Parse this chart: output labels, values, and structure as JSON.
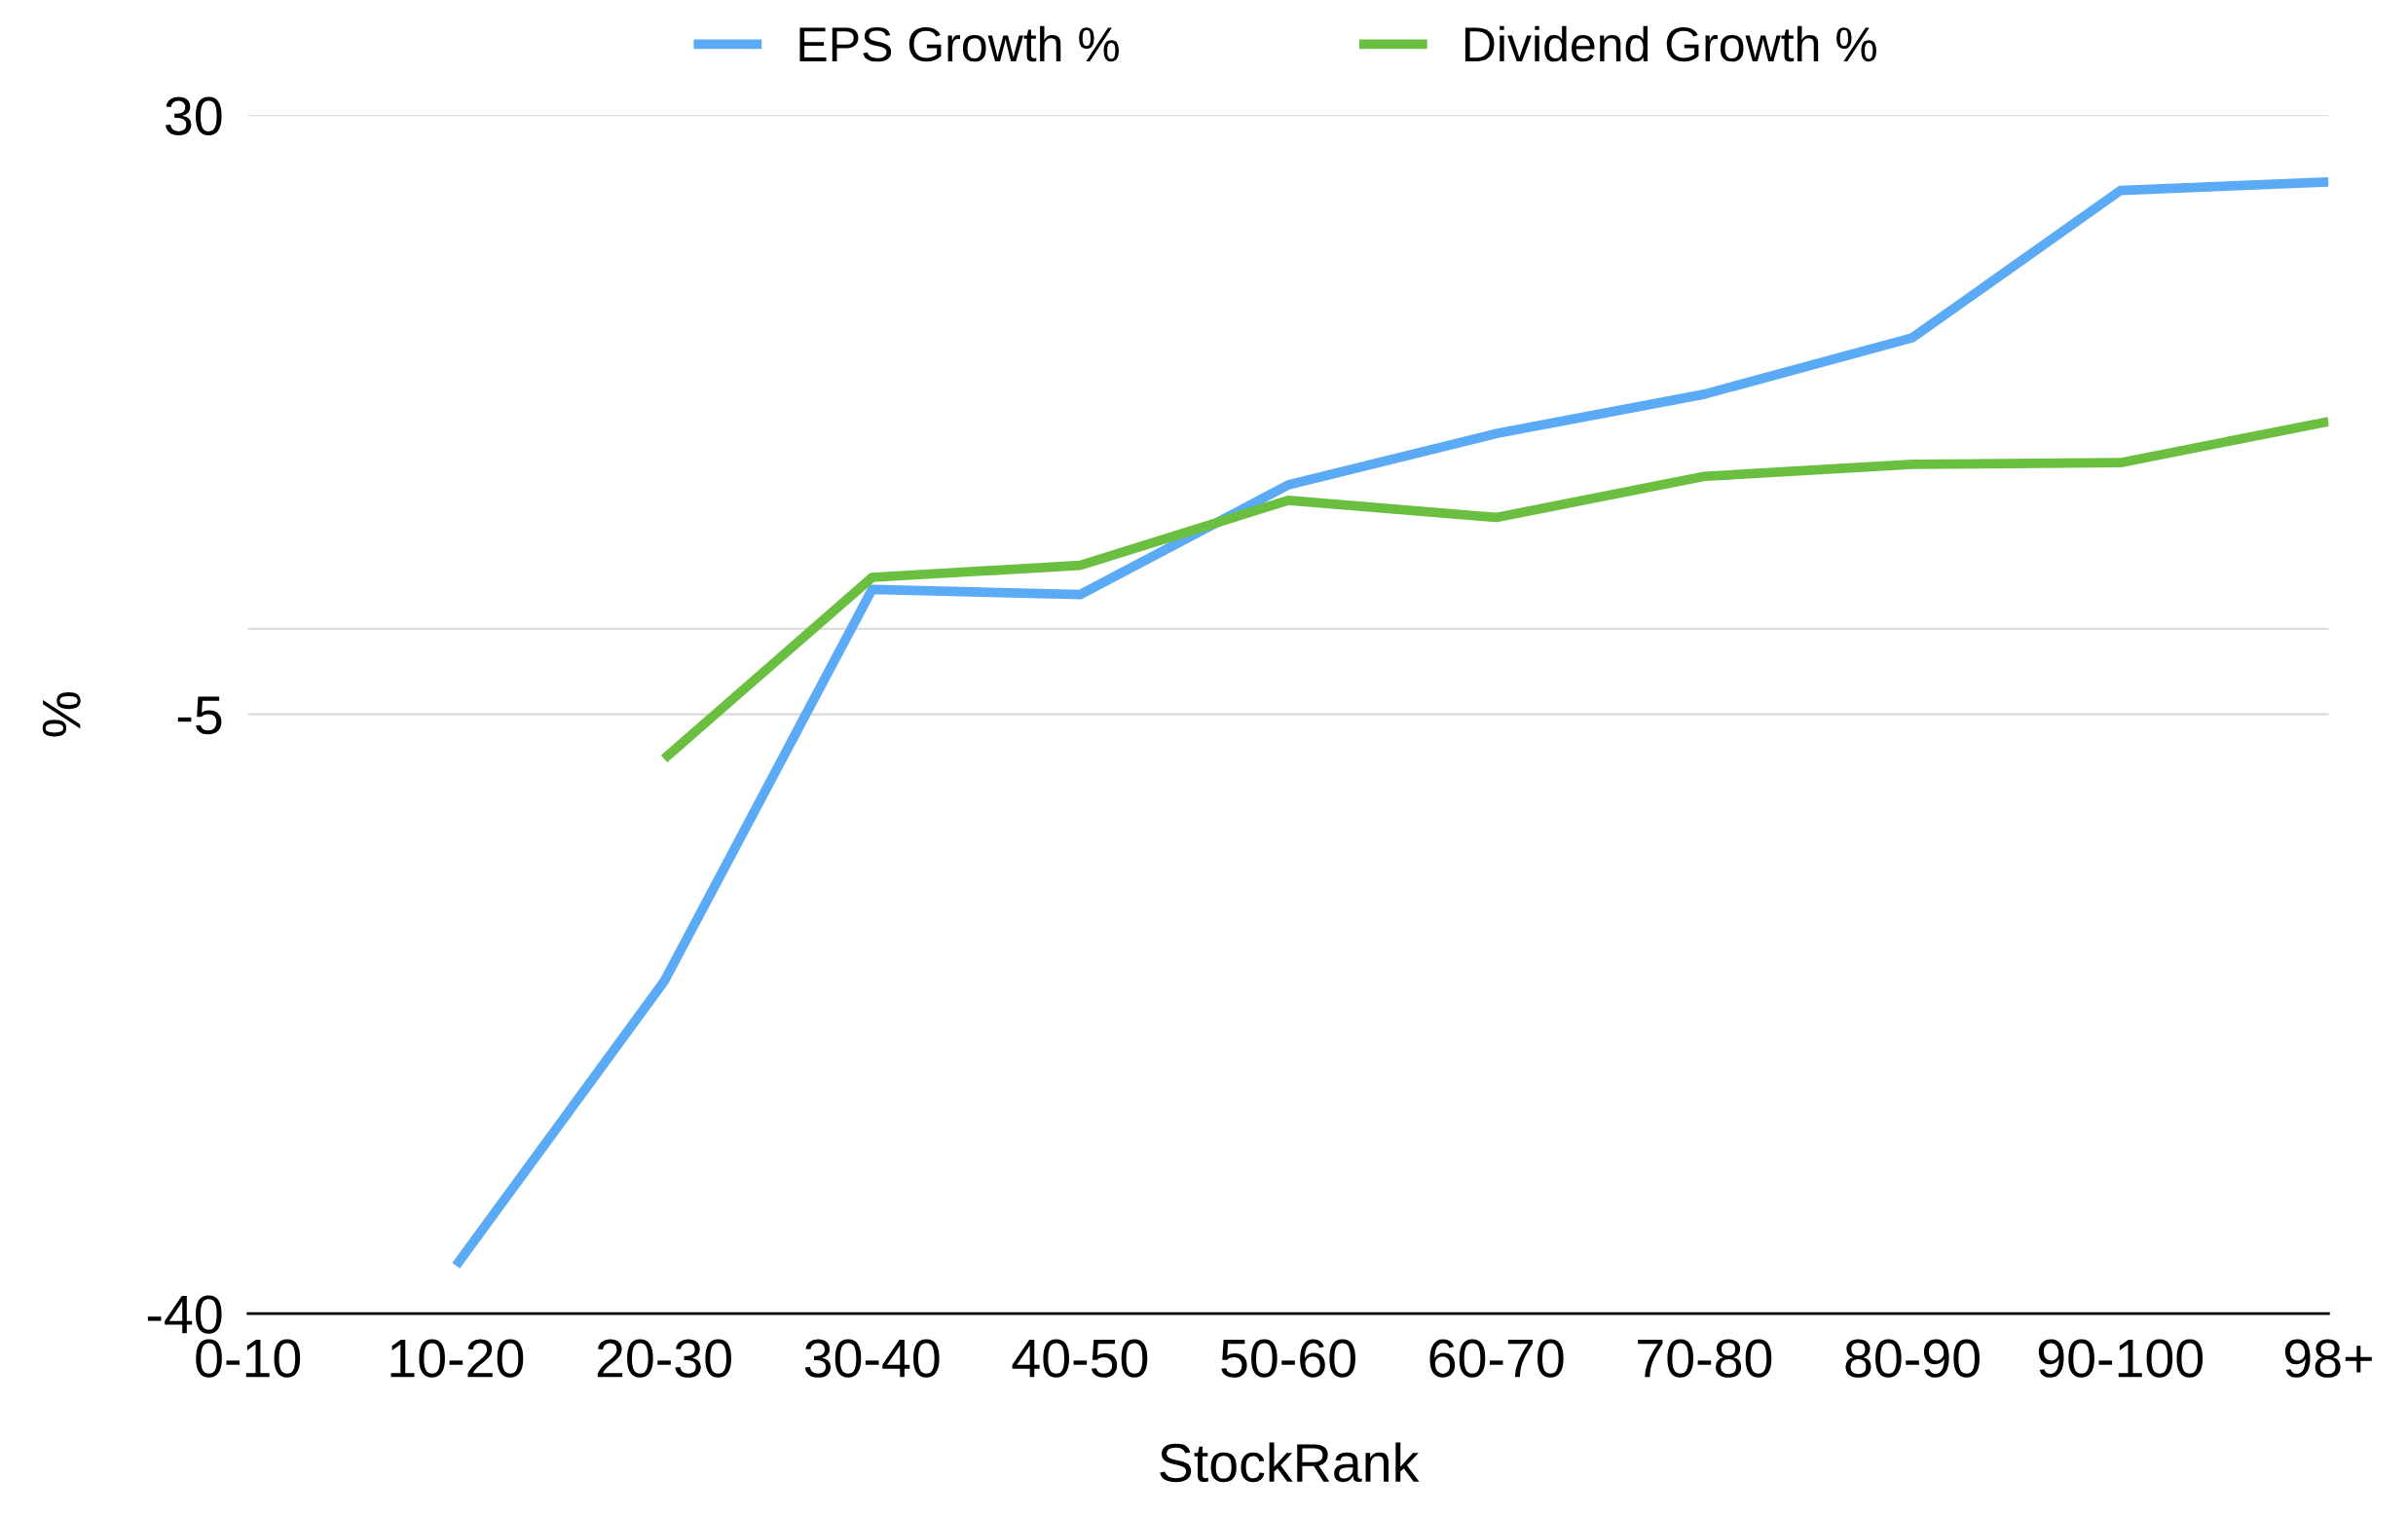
{
  "chart_data": {
    "type": "line",
    "xlabel": "StockRank",
    "ylabel": "%",
    "categories": [
      "0-10",
      "10-20",
      "20-30",
      "30-40",
      "40-50",
      "50-60",
      "60-70",
      "70-80",
      "80-90",
      "90-100",
      "98+"
    ],
    "series": [
      {
        "name": "EPS Growth %",
        "color": "#5aaaf5",
        "values": [
          null,
          -37.2,
          -20.6,
          2.3,
          2.0,
          8.4,
          11.4,
          13.7,
          17.0,
          25.6,
          26.1
        ]
      },
      {
        "name": "Dividend Growth %",
        "color": "#6abf40",
        "values": [
          null,
          null,
          -7.6,
          3.0,
          3.7,
          7.5,
          6.5,
          8.9,
          9.6,
          9.7,
          12.1
        ]
      }
    ],
    "ylim": [
      -40,
      30
    ],
    "yticks": [
      -40,
      -5,
      {
        "value": 0,
        "label": null
      },
      30
    ],
    "grid": "y",
    "legend": "top",
    "marker": "none",
    "line_style": "solid"
  }
}
